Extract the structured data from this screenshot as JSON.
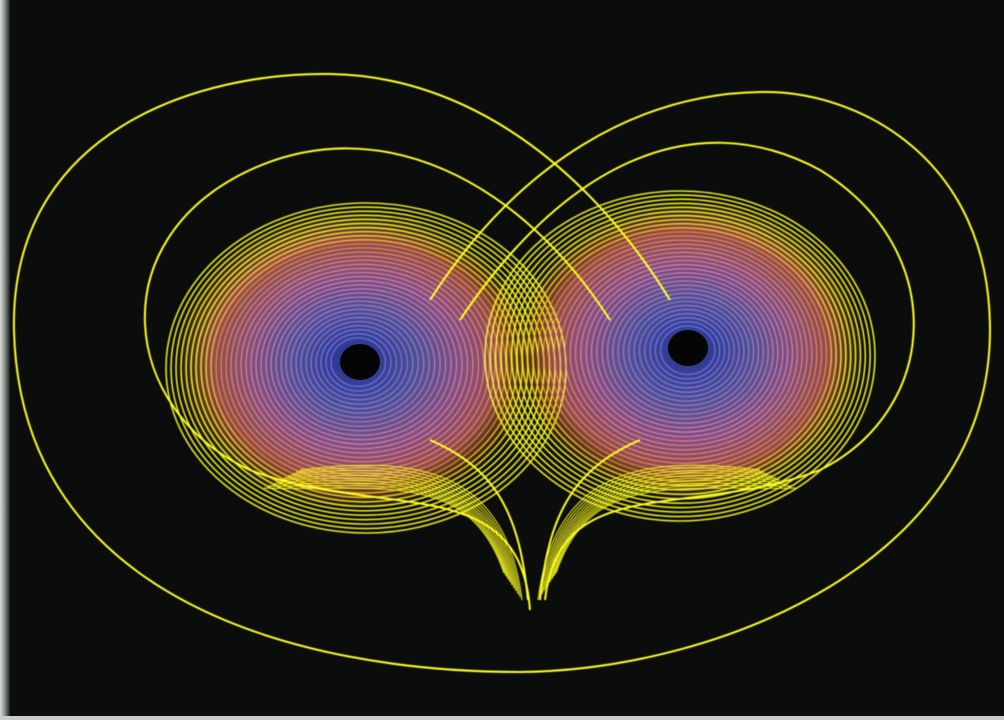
{
  "image": {
    "subject": "lorenz-attractor-photograph",
    "background_color": "#0b0d0c",
    "colors": {
      "outer_trajectory": "#ffff22",
      "middle_band": "#ff9a1f",
      "inner_band": "#ff7fb8",
      "core": "#6f7bff",
      "eye": "#050505"
    },
    "lobe_labels": []
  }
}
